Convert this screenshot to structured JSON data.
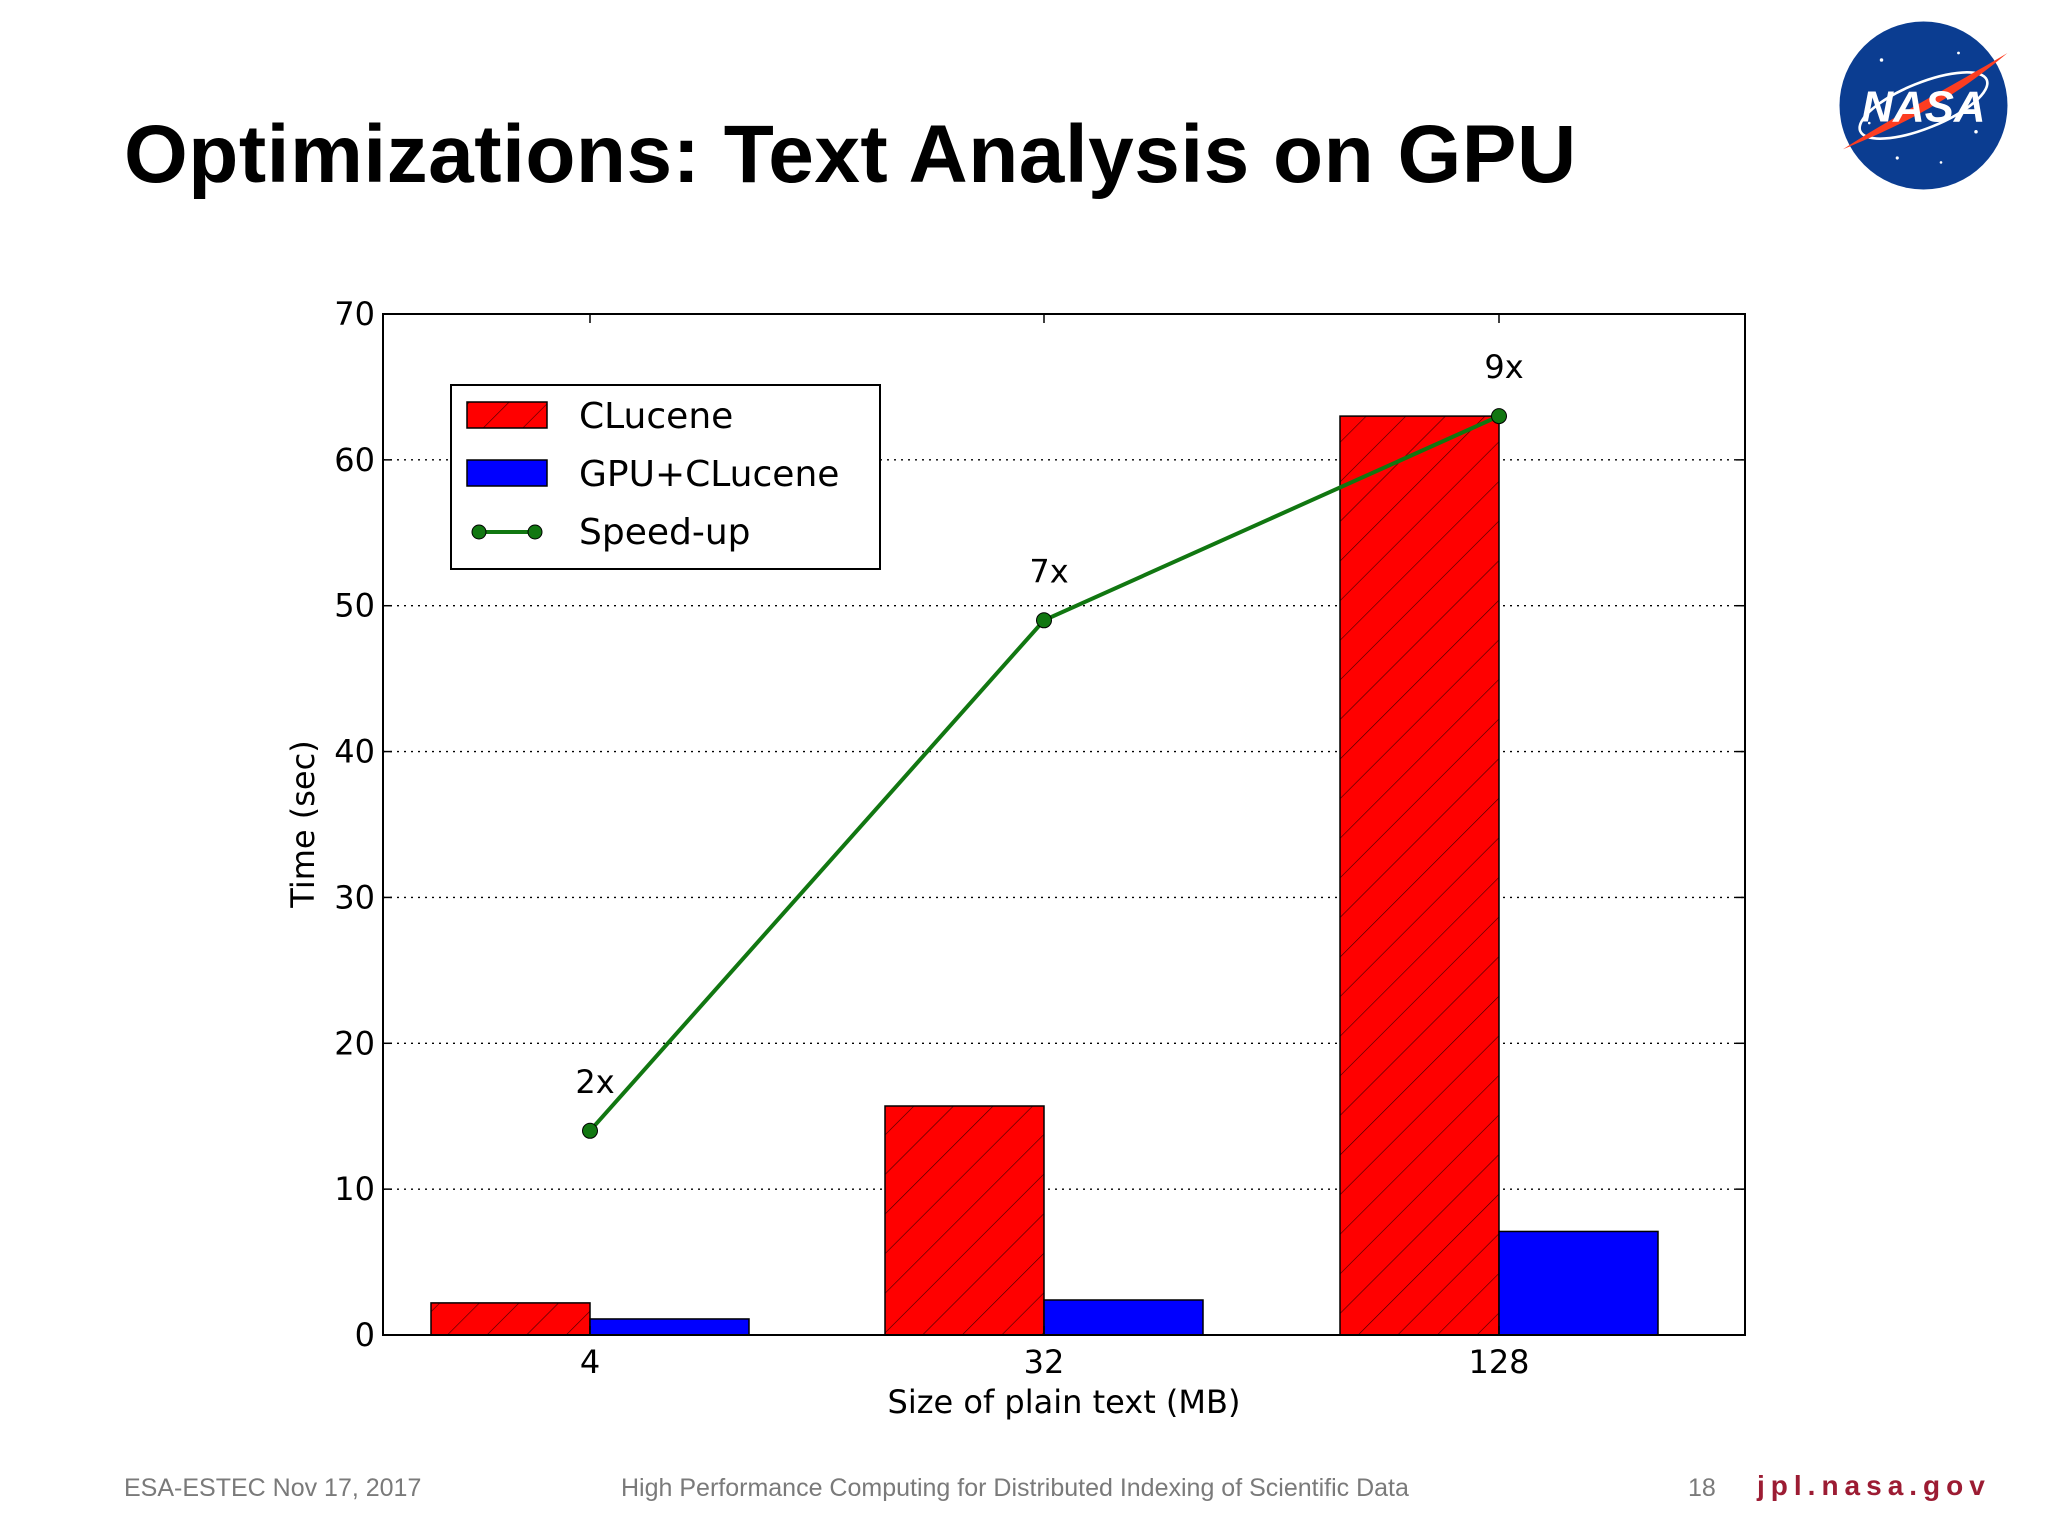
{
  "slide": {
    "title": "Optimizations: Text Analysis on GPU",
    "logo_text": "NASA"
  },
  "footer": {
    "left": "ESA-ESTEC Nov 17, 2017",
    "center": "High Performance Computing for Distributed Indexing of Scientific Data",
    "page_number": "18",
    "url": "jpl.nasa.gov"
  },
  "colors": {
    "clucene": "#ff0000",
    "gpu_clucene": "#0000ff",
    "speedup": "#117711",
    "footer_url": "#9c1c33"
  },
  "chart_data": {
    "type": "bar",
    "categories": [
      "4",
      "32",
      "128"
    ],
    "xlabel": "Size of plain text (MB)",
    "ylabel": "Time (sec)",
    "ylim": [
      0,
      70
    ],
    "yticks": [
      0,
      10,
      20,
      30,
      40,
      50,
      60,
      70
    ],
    "grid": "horizontal dotted",
    "legend_position": "upper-left",
    "series": [
      {
        "name": "CLucene",
        "type": "bar",
        "hatch": true,
        "values": [
          2.2,
          15.7,
          63.0
        ]
      },
      {
        "name": "GPU+CLucene",
        "type": "bar",
        "values": [
          1.1,
          2.4,
          7.1
        ]
      },
      {
        "name": "Speed-up",
        "type": "line",
        "values": [
          14,
          49,
          63
        ],
        "labels": [
          "2x",
          "7x",
          "9x"
        ]
      }
    ]
  }
}
